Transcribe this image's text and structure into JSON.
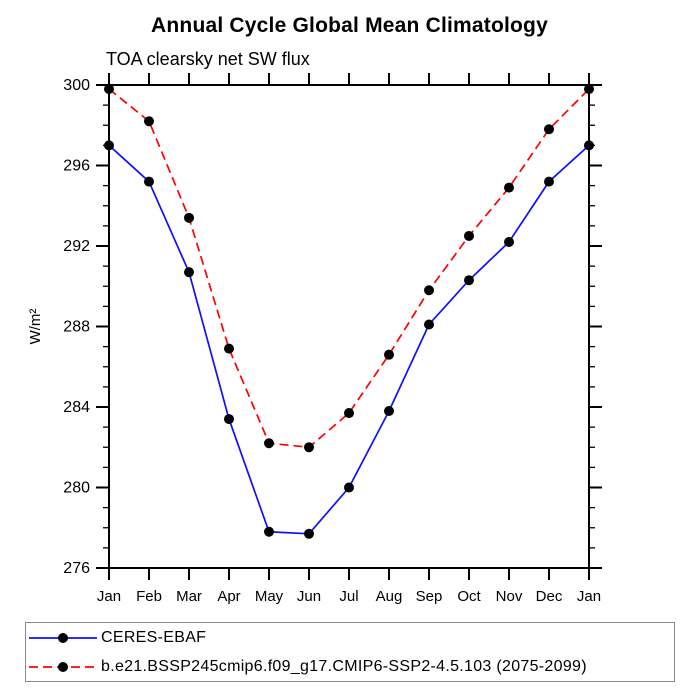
{
  "header": {
    "title": "Annual Cycle Global Mean Climatology",
    "subtitle": "TOA clearsky net SW flux"
  },
  "chart_data": {
    "type": "line",
    "categories": [
      "Jan",
      "Feb",
      "Mar",
      "Apr",
      "May",
      "Jun",
      "Jul",
      "Aug",
      "Sep",
      "Oct",
      "Nov",
      "Dec",
      "Jan"
    ],
    "series": [
      {
        "name": "CERES-EBAF",
        "color": "#0f0fff",
        "line_style": "solid",
        "marker": "filled-circle",
        "marker_color": "#000000",
        "values": [
          297.0,
          295.2,
          290.7,
          283.4,
          277.8,
          277.7,
          280.0,
          283.8,
          288.1,
          290.3,
          292.2,
          295.2,
          297.0
        ]
      },
      {
        "name": "b.e21.BSSP245cmip6.f09_g17.CMIP6-SSP2-4.5.103 (2075-2099)",
        "color": "#ff0000",
        "line_style": "dashed",
        "marker": "filled-circle",
        "marker_color": "#000000",
        "values": [
          299.8,
          298.2,
          293.4,
          286.9,
          282.2,
          282.0,
          283.7,
          286.6,
          289.8,
          292.5,
          294.9,
          297.8,
          299.8
        ]
      }
    ],
    "xlabel": "",
    "ylabel": "W/m²",
    "ylim": [
      276,
      300
    ],
    "ytick_major_step": 4,
    "ytick_minor_step": 1,
    "ytick_labels": [
      "276",
      "280",
      "284",
      "288",
      "292",
      "296",
      "300"
    ],
    "grid": false,
    "legend_position": "bottom-outside-box",
    "frame": "box-with-outward-ticks"
  }
}
